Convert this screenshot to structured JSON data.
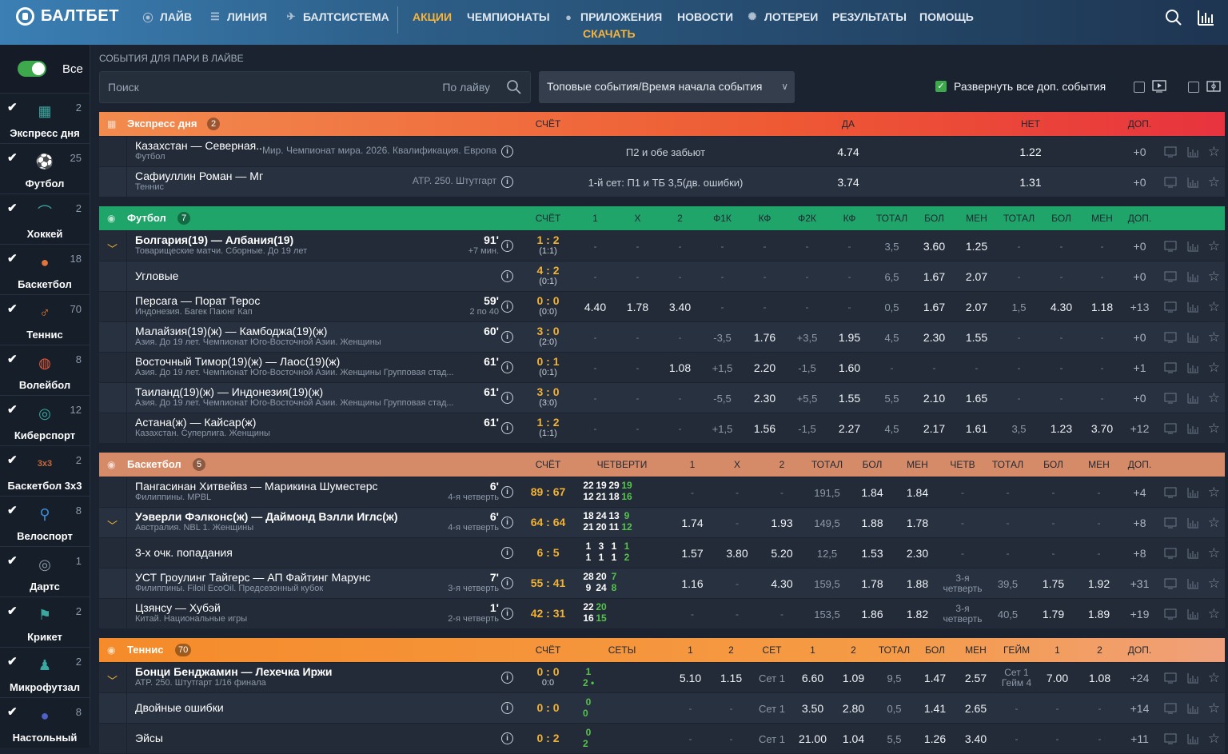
{
  "brand": "БАЛТБЕТ",
  "nav": {
    "live": "ЛАЙВ",
    "line": "ЛИНИЯ",
    "system": "БАЛТСИСТЕМА",
    "promo": "АКЦИИ",
    "champ": "ЧЕМПИОНАТЫ",
    "apps": "ПРИЛОЖЕНИЯ",
    "download": "СКАЧАТЬ",
    "news": "НОВОСТИ",
    "lottery": "ЛОТЕРЕИ",
    "results": "РЕЗУЛЬТАТЫ",
    "help": "ПОМОЩЬ"
  },
  "sidebar": {
    "all_label": "Все",
    "items": [
      {
        "label": "Экспресс дня",
        "count": "2",
        "icon": "ticket-icon"
      },
      {
        "label": "Футбол",
        "count": "25",
        "icon": "soccer-ball-icon"
      },
      {
        "label": "Хоккей",
        "count": "2",
        "icon": "hockey-stick-icon"
      },
      {
        "label": "Баскетбол",
        "count": "18",
        "icon": "basketball-icon"
      },
      {
        "label": "Теннис",
        "count": "70",
        "icon": "tennis-racket-icon"
      },
      {
        "label": "Волейбол",
        "count": "8",
        "icon": "volleyball-icon"
      },
      {
        "label": "Киберспорт",
        "count": "12",
        "icon": "esports-icon"
      },
      {
        "label": "Баскетбол 3x3",
        "count": "2",
        "icon": "basketball-3x3-icon"
      },
      {
        "label": "Велоспорт",
        "count": "8",
        "icon": "bicycle-icon"
      },
      {
        "label": "Дартс",
        "count": "1",
        "icon": "darts-icon"
      },
      {
        "label": "Крикет",
        "count": "2",
        "icon": "cricket-icon"
      },
      {
        "label": "Микрофутзал",
        "count": "2",
        "icon": "futsal-icon"
      },
      {
        "label": "Настольный",
        "count": "8",
        "icon": "table-tennis-icon"
      }
    ]
  },
  "toolbar": {
    "caption": "СОБЫТИЯ ДЛЯ ПАРИ В ЛАЙВЕ",
    "search_placeholder": "Поиск",
    "search_hint": "По лайву",
    "sort": "Топовые события/Время начала события",
    "expand": "Развернуть все доп. события"
  },
  "express": {
    "title": "Экспресс дня",
    "count": "2",
    "h_score": "СЧЁТ",
    "h_yes": "ДА",
    "h_no": "НЕТ",
    "h_more": "ДОП.",
    "rows": [
      {
        "name": "Казахстан — Северная...",
        "sport": "Футбол",
        "league": "Мир. Чемпионат мира. 2026. Квалификация. Европа",
        "market": "П2 и обе забьют",
        "yes": "4.74",
        "no": "1.22",
        "more": "+0"
      },
      {
        "name": "Сафиуллин Роман — Мпетши Перрикар Джованни",
        "sport": "Теннис",
        "league": "ATP. 250. Штутгарт",
        "market": "1-й сет: П1 и ТБ 3,5(дв. ошибки)",
        "yes": "3.74",
        "no": "1.31",
        "more": "+0"
      }
    ]
  },
  "football": {
    "title": "Футбол",
    "count": "7",
    "headers": [
      "СЧЁТ",
      "1",
      "Х",
      "2",
      "Ф1К",
      "КФ",
      "Ф2К",
      "КФ",
      "ТОТАЛ",
      "БОЛ",
      "МЕН",
      "ТОТАЛ",
      "БОЛ",
      "МЕН",
      "ДОП."
    ],
    "rows": [
      {
        "name": "Болгария(19) — Албания(19)",
        "bold": true,
        "league": "Товарищеские матчи. Сборные. До 19 лет",
        "time": "91'",
        "time_sub": "+7 мин.",
        "score": "1 : 2",
        "score_sub": "(1:1)",
        "vals": [
          "-",
          "-",
          "-",
          "-",
          "-",
          "-",
          "-",
          "3,5",
          "3.60",
          "1.25",
          "-",
          "-",
          "-"
        ],
        "more": "+0",
        "chev": true
      },
      {
        "name": "Угловые",
        "league": "",
        "time": "",
        "time_sub": "",
        "score": "4 : 2",
        "score_sub": "(0:1)",
        "vals": [
          "-",
          "-",
          "-",
          "-",
          "-",
          "-",
          "-",
          "6,5",
          "1.67",
          "2.07",
          "-",
          "-",
          "-"
        ],
        "more": "+0"
      },
      {
        "name": "Персага — Порат Терос",
        "league": "Индонезия. Багек Паюнг Кап",
        "time": "59'",
        "time_sub": "2 по 40",
        "score": "0 : 0",
        "score_sub": "(0:0)",
        "vals": [
          "4.40",
          "1.78",
          "3.40",
          "-",
          "-",
          "-",
          "-",
          "0,5",
          "1.67",
          "2.07",
          "1,5",
          "4.30",
          "1.18"
        ],
        "more": "+13"
      },
      {
        "name": "Малайзия(19)(ж) — Камбоджа(19)(ж)",
        "league": "Азия. До 19 лет. Чемпионат Юго-Восточной Азии. Женщины",
        "time": "60'",
        "time_sub": "",
        "score": "3 : 0",
        "score_sub": "(2:0)",
        "vals": [
          "-",
          "-",
          "-",
          "-3,5",
          "1.76",
          "+3,5",
          "1.95",
          "4,5",
          "2.30",
          "1.55",
          "-",
          "-",
          "-"
        ],
        "more": "+0"
      },
      {
        "name": "Восточный Тимор(19)(ж) — Лаос(19)(ж)",
        "league": "Азия. До 19 лет. Чемпионат Юго-Восточной Азии. Женщины Групповая стад...",
        "time": "61'",
        "time_sub": "",
        "score": "0 : 1",
        "score_sub": "(0:1)",
        "vals": [
          "-",
          "-",
          "1.08",
          "+1,5",
          "2.20",
          "-1,5",
          "1.60",
          "-",
          "-",
          "-",
          "-",
          "-",
          "-"
        ],
        "more": "+1"
      },
      {
        "name": "Таиланд(19)(ж) — Индонезия(19)(ж)",
        "league": "Азия. До 19 лет. Чемпионат Юго-Восточной Азии. Женщины Групповая стад...",
        "time": "61'",
        "time_sub": "",
        "score": "3 : 0",
        "score_sub": "(3:0)",
        "vals": [
          "-",
          "-",
          "-",
          "-5,5",
          "2.30",
          "+5,5",
          "1.55",
          "5,5",
          "2.10",
          "1.65",
          "-",
          "-",
          "-"
        ],
        "more": "+0"
      },
      {
        "name": "Астана(ж) — Кайсар(ж)",
        "league": "Казахстан. Суперлига. Женщины",
        "time": "61'",
        "time_sub": "",
        "score": "1 : 2",
        "score_sub": "(1:1)",
        "vals": [
          "-",
          "-",
          "-",
          "+1,5",
          "1.56",
          "-1,5",
          "2.27",
          "4,5",
          "2.17",
          "1.61",
          "3,5",
          "1.23",
          "3.70"
        ],
        "more": "+12"
      }
    ]
  },
  "basketball": {
    "title": "Баскетбол",
    "count": "5",
    "headers": [
      "СЧЁТ",
      "ЧЕТВЕРТИ",
      "1",
      "Х",
      "2",
      "ТОТАЛ",
      "БОЛ",
      "МЕН",
      "ЧЕТВ",
      "ТОТАЛ",
      "БОЛ",
      "МЕН",
      "ДОП."
    ],
    "rows": [
      {
        "name": "Пангасинан Хитвейвз — Марикина Шуместерс",
        "league": "Филиппины. MPBL",
        "time": "6'",
        "time_sub": "4-я четверть",
        "score": "89 : 67",
        "q1": [
          "22",
          "19",
          "29",
          "19"
        ],
        "q2": [
          "12",
          "21",
          "18",
          "16"
        ],
        "vals": [
          "-",
          "-",
          "-",
          "191,5",
          "1.84",
          "1.84",
          "-",
          "-",
          "-",
          "-"
        ],
        "more": "+4"
      },
      {
        "name": "Уэверли Фэлконс(ж) — Даймонд Вэлли Иглс(ж)",
        "bold": true,
        "chev": true,
        "league": "Австралия. NBL 1. Женщины",
        "time": "6'",
        "time_sub": "4-я четверть",
        "score": "64 : 64",
        "q1": [
          "18",
          "24",
          "13",
          "9"
        ],
        "q2": [
          "21",
          "20",
          "11",
          "12"
        ],
        "vals": [
          "1.74",
          "-",
          "1.93",
          "149,5",
          "1.88",
          "1.78",
          "-",
          "-",
          "-",
          "-"
        ],
        "more": "+8"
      },
      {
        "name": "3-х очк. попадания",
        "league": "",
        "time": "",
        "time_sub": "",
        "score": "6 : 5",
        "q1": [
          "1",
          "3",
          "1",
          "1"
        ],
        "q2": [
          "1",
          "1",
          "1",
          "2"
        ],
        "vals": [
          "1.57",
          "3.80",
          "5.20",
          "12,5",
          "1.53",
          "2.30",
          "-",
          "-",
          "-",
          "-"
        ],
        "more": "+8"
      },
      {
        "name": "УСТ Гроулинг Тайгерс — АП Файтинг Марунс",
        "league": "Филиппины. Filoil EcoOil. Предсезонный кубок",
        "time": "7'",
        "time_sub": "3-я четверть",
        "score": "55 : 41",
        "q1": [
          "28",
          "20",
          "7"
        ],
        "q2": [
          "9",
          "24",
          "8"
        ],
        "vals": [
          "1.16",
          "-",
          "4.30",
          "159,5",
          "1.78",
          "1.88",
          "3-я четверть",
          "39,5",
          "1.75",
          "1.92"
        ],
        "more": "+31"
      },
      {
        "name": "Цзянсу — Хубэй",
        "league": "Китай. Национальные игры",
        "time": "1'",
        "time_sub": "2-я четверть",
        "score": "42 : 31",
        "q1": [
          "22",
          "20"
        ],
        "q2": [
          "16",
          "15"
        ],
        "vals": [
          "-",
          "-",
          "-",
          "153,5",
          "1.86",
          "1.82",
          "3-я четверть",
          "40,5",
          "1.79",
          "1.89"
        ],
        "more": "+19"
      }
    ]
  },
  "tennis": {
    "title": "Теннис",
    "count": "70",
    "headers": [
      "СЧЁТ",
      "СЕТЫ",
      "1",
      "2",
      "СЕТ",
      "1",
      "2",
      "ТОТАЛ",
      "БОЛ",
      "МЕН",
      "ГЕЙМ",
      "1",
      "2",
      "ДОП."
    ],
    "rows": [
      {
        "name": "Бонци Бенджамин — Лехечка Иржи",
        "bold": true,
        "chev": true,
        "league": "ATP. 250. Штутгарт 1/16 финала",
        "score": "0 : 0",
        "score_sub": "0:0",
        "sets": [
          "1",
          "2 •"
        ],
        "vals": [
          "5.10",
          "1.15",
          "Сет 1",
          "6.60",
          "1.09",
          "9,5",
          "1.47",
          "2.57",
          "Сет 1 Гейм 4",
          "7.00",
          "1.08"
        ],
        "more": "+24"
      },
      {
        "name": "Двойные ошибки",
        "league": "",
        "score": "0 : 0",
        "score_sub": "",
        "sets": [
          "0",
          "0"
        ],
        "vals": [
          "-",
          "-",
          "Сет 1",
          "3.50",
          "2.80",
          "0,5",
          "1.41",
          "2.65",
          "-",
          "-",
          "-"
        ],
        "more": "+14"
      },
      {
        "name": "Эйсы",
        "league": "",
        "score": "0 : 2",
        "score_sub": "",
        "sets": [
          "0",
          "2"
        ],
        "vals": [
          "-",
          "-",
          "Сет 1",
          "21.00",
          "1.04",
          "5,5",
          "1.26",
          "3.40",
          "-",
          "-",
          "-"
        ],
        "more": "+11"
      }
    ]
  },
  "colors": {
    "express": "#f06a3c",
    "football": "#22a466",
    "basketball": "#d88c66",
    "tennis": "#f4943a",
    "odds_score": "#f3b232"
  }
}
